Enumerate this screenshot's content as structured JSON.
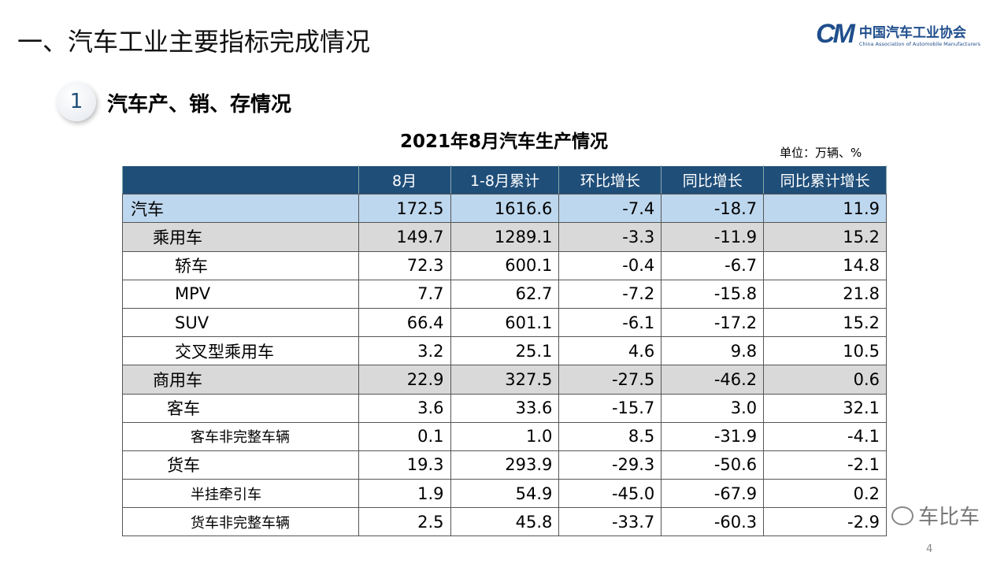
{
  "title": "一、汽车工业主要指标完成情况",
  "logo": {
    "mark": "CAAM",
    "cn": "中国汽车工业协会",
    "en": "China Association of Automobile Manufacturers"
  },
  "section": {
    "number": "1",
    "title": "汽车产、销、存情况"
  },
  "table_title": "2021年8月汽车生产情况",
  "unit": "单位：万辆、%",
  "headers": [
    "",
    "8月",
    "1-8月累计",
    "环比增长",
    "同比增长",
    "同比累计增长"
  ],
  "rows": [
    {
      "label": "汽车",
      "level": 0,
      "values": [
        "172.5",
        "1616.6",
        "-7.4",
        "-18.7",
        "11.9"
      ]
    },
    {
      "label": "乘用车",
      "level": 1,
      "values": [
        "149.7",
        "1289.1",
        "-3.3",
        "-11.9",
        "15.2"
      ]
    },
    {
      "label": "轿车",
      "level": 2,
      "values": [
        "72.3",
        "600.1",
        "-0.4",
        "-6.7",
        "14.8"
      ]
    },
    {
      "label": "MPV",
      "level": 2,
      "values": [
        "7.7",
        "62.7",
        "-7.2",
        "-15.8",
        "21.8"
      ]
    },
    {
      "label": "SUV",
      "level": 2,
      "values": [
        "66.4",
        "601.1",
        "-6.1",
        "-17.2",
        "15.2"
      ]
    },
    {
      "label": "交叉型乘用车",
      "level": 2,
      "values": [
        "3.2",
        "25.1",
        "4.6",
        "9.8",
        "10.5"
      ]
    },
    {
      "label": "商用车",
      "level": 1,
      "values": [
        "22.9",
        "327.5",
        "-27.5",
        "-46.2",
        "0.6"
      ]
    },
    {
      "label": "客车",
      "level": "1b",
      "values": [
        "3.6",
        "33.6",
        "-15.7",
        "3.0",
        "32.1"
      ]
    },
    {
      "label": "客车非完整车辆",
      "level": 3,
      "values": [
        "0.1",
        "1.0",
        "8.5",
        "-31.9",
        "-4.1"
      ]
    },
    {
      "label": "货车",
      "level": "1b",
      "values": [
        "19.3",
        "293.9",
        "-29.3",
        "-50.6",
        "-2.1"
      ]
    },
    {
      "label": "半挂牵引车",
      "level": 3,
      "values": [
        "1.9",
        "54.9",
        "-45.0",
        "-67.9",
        "0.2"
      ]
    },
    {
      "label": "货车非完整车辆",
      "level": 3,
      "values": [
        "2.5",
        "45.8",
        "-33.7",
        "-60.3",
        "-2.9"
      ]
    }
  ],
  "watermark": "车比车",
  "page_number": "4",
  "colors": {
    "header": "#1f4e79",
    "total_row": "#bdd7ee",
    "group_row": "#d9d9d9"
  }
}
